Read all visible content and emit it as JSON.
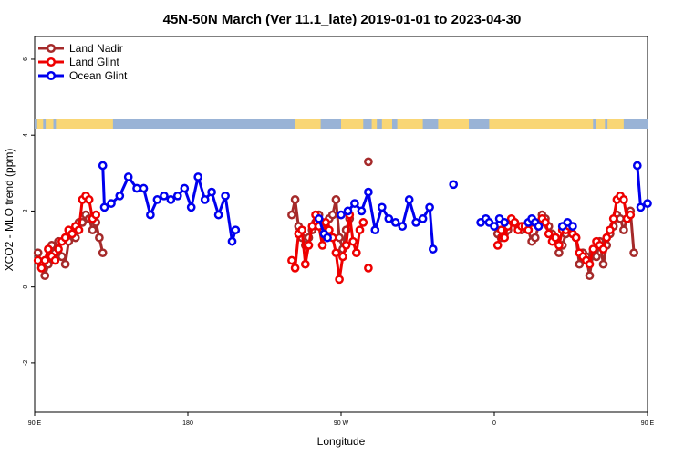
{
  "chart_data": {
    "type": "line",
    "title": "45N-50N March (Ver 11.1_late)   2019-01-01 to 2023-04-30",
    "xlabel": "Longitude",
    "ylabel": "XCO2 - MLO trend (ppm)",
    "xlim": [
      90,
      450
    ],
    "ylim": [
      -3.3,
      6.6
    ],
    "x_ticks": [
      {
        "value": 90,
        "label": "90 E"
      },
      {
        "value": 180,
        "label": "180"
      },
      {
        "value": 270,
        "label": "90 W"
      },
      {
        "value": 360,
        "label": "0"
      },
      {
        "value": 450,
        "label": "90 E"
      },
      {
        "value": 540,
        "label": "180"
      }
    ],
    "y_ticks": [
      {
        "value": -2,
        "label": "-2"
      },
      {
        "value": 0,
        "label": "0"
      },
      {
        "value": 2,
        "label": "2"
      },
      {
        "value": 4,
        "label": "4"
      },
      {
        "value": 6,
        "label": "6"
      }
    ],
    "legend_position": "top-left",
    "series": [
      {
        "name": "Land Nadir",
        "color": "#a52a2a",
        "segments": [
          [
            [
              92,
              0.9
            ],
            [
              94,
              0.6
            ],
            [
              96,
              0.3
            ],
            [
              98,
              0.6
            ],
            [
              100,
              1.1
            ],
            [
              102,
              0.9
            ],
            [
              104,
              1.2
            ],
            [
              106,
              0.8
            ],
            [
              108,
              0.6
            ],
            [
              110,
              1.2
            ],
            [
              112,
              1.4
            ],
            [
              114,
              1.3
            ],
            [
              116,
              1.7
            ],
            [
              118,
              1.7
            ],
            [
              120,
              1.9
            ],
            [
              122,
              1.8
            ],
            [
              124,
              1.5
            ],
            [
              126,
              1.7
            ],
            [
              128,
              1.3
            ],
            [
              130,
              0.9
            ]
          ],
          [
            [
              241,
              1.9
            ],
            [
              243,
              2.3
            ],
            [
              245,
              1.6
            ],
            [
              247,
              1.3
            ],
            [
              249,
              1.1
            ],
            [
              251,
              1.3
            ],
            [
              253,
              1.5
            ],
            [
              255,
              1.7
            ],
            [
              257,
              1.9
            ],
            [
              259,
              1.7
            ],
            [
              261,
              1.6
            ],
            [
              263,
              1.8
            ],
            [
              265,
              1.9
            ],
            [
              267,
              2.3
            ],
            [
              269,
              1.3
            ],
            [
              271,
              1.0
            ],
            [
              273,
              1.5
            ],
            [
              275,
              1.8
            ]
          ],
          [
            [
              286,
              3.3
            ]
          ],
          [
            [
              362,
              1.4
            ],
            [
              364,
              1.3
            ],
            [
              366,
              1.4
            ],
            [
              368,
              1.5
            ],
            [
              370,
              1.7
            ],
            [
              372,
              1.7
            ],
            [
              374,
              1.6
            ],
            [
              376,
              1.5
            ],
            [
              378,
              1.6
            ],
            [
              380,
              1.5
            ],
            [
              382,
              1.2
            ],
            [
              384,
              1.3
            ],
            [
              386,
              1.6
            ],
            [
              388,
              1.9
            ],
            [
              390,
              1.8
            ],
            [
              392,
              1.6
            ],
            [
              394,
              1.4
            ],
            [
              396,
              1.3
            ],
            [
              398,
              0.9
            ],
            [
              400,
              1.1
            ],
            [
              402,
              1.4
            ],
            [
              404,
              1.5
            ],
            [
              406,
              1.4
            ],
            [
              408,
              1.3
            ],
            [
              410,
              0.6
            ],
            [
              412,
              0.9
            ],
            [
              414,
              0.8
            ],
            [
              416,
              0.3
            ],
            [
              418,
              0.9
            ],
            [
              420,
              0.8
            ],
            [
              422,
              1.2
            ],
            [
              424,
              0.6
            ],
            [
              426,
              1.1
            ],
            [
              428,
              1.4
            ],
            [
              430,
              1.6
            ],
            [
              432,
              1.9
            ],
            [
              434,
              1.8
            ],
            [
              436,
              1.5
            ],
            [
              438,
              1.8
            ],
            [
              440,
              2.0
            ],
            [
              442,
              0.9
            ]
          ]
        ]
      },
      {
        "name": "Land Glint",
        "color": "#ee0000",
        "segments": [
          [
            [
              92,
              0.7
            ],
            [
              94,
              0.5
            ],
            [
              96,
              0.7
            ],
            [
              98,
              1.0
            ],
            [
              100,
              0.8
            ],
            [
              102,
              0.7
            ],
            [
              104,
              1.0
            ],
            [
              106,
              1.2
            ],
            [
              108,
              1.3
            ],
            [
              110,
              1.5
            ],
            [
              112,
              1.4
            ],
            [
              114,
              1.6
            ],
            [
              116,
              1.5
            ],
            [
              118,
              2.3
            ],
            [
              120,
              2.4
            ],
            [
              122,
              2.3
            ],
            [
              124,
              1.8
            ],
            [
              126,
              1.9
            ]
          ],
          [
            [
              241,
              0.7
            ],
            [
              243,
              0.5
            ],
            [
              245,
              1.4
            ],
            [
              247,
              1.5
            ],
            [
              249,
              0.6
            ],
            [
              251,
              1.1
            ],
            [
              253,
              1.6
            ],
            [
              255,
              1.9
            ],
            [
              257,
              1.6
            ],
            [
              259,
              1.1
            ],
            [
              261,
              1.7
            ],
            [
              263,
              1.5
            ],
            [
              265,
              1.3
            ],
            [
              267,
              0.9
            ],
            [
              269,
              0.2
            ],
            [
              271,
              0.8
            ],
            [
              273,
              1.1
            ],
            [
              275,
              1.9
            ],
            [
              277,
              1.2
            ],
            [
              279,
              0.9
            ],
            [
              281,
              1.5
            ],
            [
              283,
              1.7
            ]
          ],
          [
            [
              286,
              0.5
            ]
          ],
          [
            [
              362,
              1.1
            ],
            [
              364,
              1.5
            ],
            [
              366,
              1.3
            ],
            [
              368,
              1.6
            ],
            [
              370,
              1.8
            ],
            [
              372,
              1.7
            ],
            [
              374,
              1.5
            ],
            [
              376,
              1.6
            ],
            [
              378,
              1.6
            ],
            [
              380,
              1.5
            ],
            [
              382,
              1.7
            ],
            [
              384,
              1.7
            ],
            [
              386,
              1.6
            ],
            [
              388,
              1.8
            ],
            [
              390,
              1.7
            ],
            [
              392,
              1.4
            ],
            [
              394,
              1.2
            ],
            [
              396,
              1.3
            ],
            [
              398,
              1.1
            ],
            [
              400,
              1.5
            ],
            [
              402,
              1.5
            ],
            [
              404,
              1.6
            ],
            [
              406,
              1.4
            ],
            [
              408,
              1.3
            ],
            [
              410,
              0.9
            ],
            [
              412,
              0.8
            ],
            [
              414,
              0.7
            ],
            [
              416,
              0.6
            ],
            [
              418,
              1.0
            ],
            [
              420,
              1.2
            ],
            [
              422,
              1.1
            ],
            [
              424,
              1.0
            ],
            [
              426,
              1.3
            ],
            [
              428,
              1.5
            ],
            [
              430,
              1.8
            ],
            [
              432,
              2.3
            ],
            [
              434,
              2.4
            ],
            [
              436,
              2.3
            ],
            [
              438,
              1.8
            ],
            [
              440,
              1.9
            ]
          ]
        ]
      },
      {
        "name": "Ocean Glint",
        "color": "#0000ee",
        "segments": [
          [
            [
              130,
              3.2
            ],
            [
              131,
              2.1
            ],
            [
              135,
              2.2
            ],
            [
              140,
              2.4
            ],
            [
              145,
              2.9
            ],
            [
              150,
              2.6
            ],
            [
              154,
              2.6
            ],
            [
              158,
              1.9
            ],
            [
              162,
              2.3
            ],
            [
              166,
              2.4
            ],
            [
              170,
              2.3
            ],
            [
              174,
              2.4
            ],
            [
              178,
              2.6
            ],
            [
              182,
              2.1
            ],
            [
              186,
              2.9
            ],
            [
              190,
              2.3
            ],
            [
              194,
              2.5
            ],
            [
              198,
              1.9
            ],
            [
              202,
              2.4
            ],
            [
              206,
              1.2
            ],
            [
              208,
              1.5
            ]
          ],
          [
            [
              257,
              1.8
            ],
            [
              260,
              1.4
            ],
            [
              262,
              1.3
            ]
          ],
          [
            [
              270,
              1.9
            ],
            [
              274,
              2.0
            ],
            [
              278,
              2.2
            ],
            [
              282,
              2.0
            ],
            [
              286,
              2.5
            ],
            [
              290,
              1.5
            ],
            [
              294,
              2.1
            ],
            [
              298,
              1.8
            ],
            [
              302,
              1.7
            ],
            [
              306,
              1.6
            ],
            [
              310,
              2.3
            ],
            [
              314,
              1.7
            ],
            [
              318,
              1.8
            ],
            [
              322,
              2.1
            ],
            [
              324,
              1.0
            ]
          ],
          [
            [
              336,
              2.7
            ]
          ],
          [
            [
              352,
              1.7
            ],
            [
              355,
              1.8
            ],
            [
              357,
              1.7
            ],
            [
              360,
              1.6
            ],
            [
              363,
              1.8
            ],
            [
              366,
              1.7
            ]
          ],
          [
            [
              380,
              1.7
            ],
            [
              382,
              1.8
            ],
            [
              384,
              1.7
            ],
            [
              386,
              1.6
            ]
          ],
          [
            [
              400,
              1.6
            ],
            [
              403,
              1.7
            ],
            [
              406,
              1.6
            ]
          ],
          [
            [
              444,
              3.2
            ],
            [
              446,
              2.1
            ],
            [
              450,
              2.2
            ]
          ]
        ]
      }
    ],
    "strip_colors": {
      "land": "#f9d675",
      "ocean": "#99b3d6"
    }
  }
}
